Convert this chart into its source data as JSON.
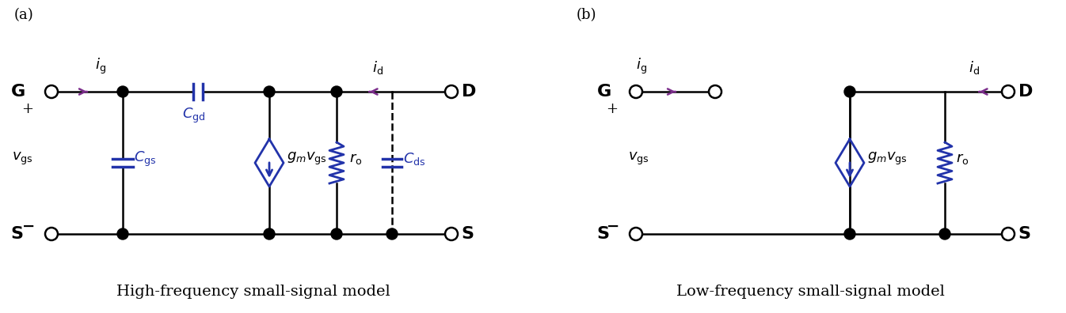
{
  "fig_width": 13.46,
  "fig_height": 3.96,
  "dpi": 100,
  "line_color": "#000000",
  "purple_color": "#7B2D8B",
  "blue_color": "#2233AA",
  "label_a": "(a)",
  "label_b": "(b)",
  "title_a": "High-frequency small-signal model",
  "title_b": "Low-frequency small-signal model"
}
